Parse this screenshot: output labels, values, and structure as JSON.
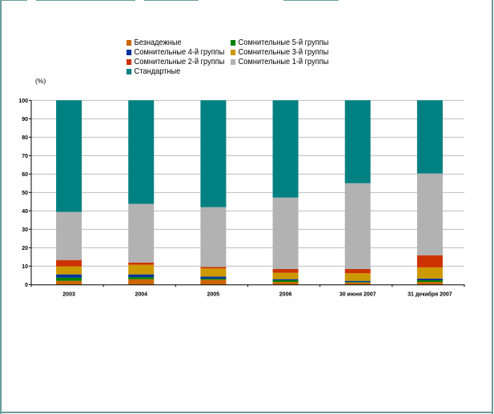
{
  "chart_data": {
    "type": "bar",
    "stacked": true,
    "title": "",
    "xlabel": "",
    "ylabel": "(%)",
    "ylim": [
      0,
      100
    ],
    "yticks": [
      0,
      10,
      20,
      30,
      40,
      50,
      60,
      70,
      80,
      90,
      100
    ],
    "grid": true,
    "legend_position": "top-center",
    "categories": [
      "2003",
      "2004",
      "2005",
      "2006",
      "30 июня 2007",
      "31 декабря 2007"
    ],
    "series": [
      {
        "name": "Безнадежные",
        "color": "#cc6600",
        "values": [
          2.0,
          2.9,
          2.6,
          1.4,
          1.1,
          1.4
        ]
      },
      {
        "name": "Сомнительные 5-й группы",
        "color": "#008000",
        "values": [
          1.7,
          1.1,
          0.6,
          0.9,
          0.3,
          0.9
        ]
      },
      {
        "name": "Сомнительные 4-й группы",
        "color": "#003399",
        "values": [
          1.8,
          1.5,
          1.1,
          0.6,
          0.6,
          0.9
        ]
      },
      {
        "name": "Сомнительные 3-й группы",
        "color": "#cc9900",
        "values": [
          4.3,
          5.2,
          4.4,
          3.5,
          4.1,
          6.1
        ]
      },
      {
        "name": "Сомнительные 2-й группы",
        "color": "#cc3300",
        "values": [
          3.5,
          1.2,
          0.9,
          2.0,
          2.3,
          6.6
        ]
      },
      {
        "name": "Сомнительные 1-й группы",
        "color": "#b2b2b2",
        "values": [
          26.1,
          31.9,
          32.4,
          38.8,
          46.6,
          44.4
        ]
      },
      {
        "name": "Стандартные",
        "color": "#008080",
        "values": [
          60.6,
          56.2,
          58.0,
          52.8,
          45.0,
          39.7
        ]
      }
    ]
  },
  "legend": {
    "items": [
      {
        "label": "Безнадежные",
        "color": "#cc6600"
      },
      {
        "label": "Сомнительные 5-й группы",
        "color": "#008000"
      },
      {
        "label": "Сомнительные 4-й группы",
        "color": "#003399"
      },
      {
        "label": "Сомнительные 3-й группы",
        "color": "#cc9900"
      },
      {
        "label": "Сомнительные 2-й группы",
        "color": "#cc3300"
      },
      {
        "label": "Сомнительные 1-й группы",
        "color": "#b2b2b2"
      },
      {
        "label": "Стандартные",
        "color": "#008080"
      }
    ]
  },
  "axis": {
    "unit_label": "(%)"
  },
  "colors": {
    "frame": "#6a9c9c",
    "grid": "#b2b2b2",
    "axis": "#000000"
  }
}
